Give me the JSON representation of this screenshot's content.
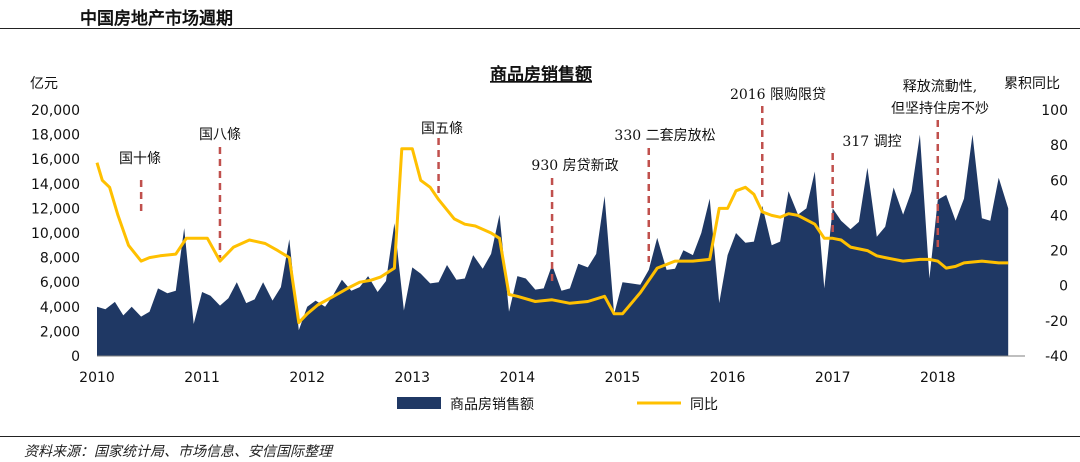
{
  "header": {
    "title": "中国房地产市场週期"
  },
  "source_note": "资料来源：国家统计局、市场信息、安信国际整理",
  "chart_data": {
    "type": "area",
    "title": "商品房销售额",
    "left_axis_label": "亿元",
    "right_axis_label": "累积同比",
    "left_ylim": [
      0,
      20000
    ],
    "left_ticks": [
      "0",
      "2,000",
      "4,000",
      "6,000",
      "8,000",
      "10,000",
      "12,000",
      "14,000",
      "16,000",
      "18,000",
      "20,000"
    ],
    "right_ylim": [
      -40,
      100
    ],
    "right_ticks": [
      "-40",
      "-20",
      "0",
      "20",
      "40",
      "60",
      "80",
      "100"
    ],
    "x_ticks": [
      "2010",
      "2011",
      "2012",
      "2013",
      "2014",
      "2015",
      "2016",
      "2017",
      "2018"
    ],
    "x_range": [
      2010,
      2018.83
    ],
    "legend_position": "bottom-center",
    "series": [
      {
        "name": "商品房销售额",
        "type": "area",
        "axis": "left",
        "color": "#1f3864",
        "points": [
          [
            2010.0,
            4000
          ],
          [
            2010.08,
            3800
          ],
          [
            2010.17,
            4400
          ],
          [
            2010.25,
            3300
          ],
          [
            2010.33,
            4000
          ],
          [
            2010.42,
            3200
          ],
          [
            2010.5,
            3600
          ],
          [
            2010.58,
            5500
          ],
          [
            2010.67,
            5100
          ],
          [
            2010.75,
            5300
          ],
          [
            2010.83,
            10400
          ],
          [
            2010.92,
            2600
          ],
          [
            2011.0,
            5200
          ],
          [
            2011.08,
            4900
          ],
          [
            2011.17,
            4100
          ],
          [
            2011.25,
            4700
          ],
          [
            2011.33,
            6000
          ],
          [
            2011.42,
            4300
          ],
          [
            2011.5,
            4600
          ],
          [
            2011.58,
            6000
          ],
          [
            2011.67,
            4500
          ],
          [
            2011.75,
            5600
          ],
          [
            2011.83,
            9500
          ],
          [
            2011.92,
            2100
          ],
          [
            2012.0,
            4000
          ],
          [
            2012.08,
            4500
          ],
          [
            2012.17,
            4000
          ],
          [
            2012.25,
            5000
          ],
          [
            2012.33,
            6200
          ],
          [
            2012.42,
            5300
          ],
          [
            2012.5,
            5600
          ],
          [
            2012.58,
            6500
          ],
          [
            2012.67,
            5200
          ],
          [
            2012.75,
            6100
          ],
          [
            2012.83,
            10800
          ],
          [
            2012.92,
            3700
          ],
          [
            2013.0,
            7200
          ],
          [
            2013.08,
            6700
          ],
          [
            2013.17,
            5900
          ],
          [
            2013.25,
            6000
          ],
          [
            2013.33,
            7400
          ],
          [
            2013.42,
            6200
          ],
          [
            2013.5,
            6300
          ],
          [
            2013.58,
            8200
          ],
          [
            2013.67,
            7100
          ],
          [
            2013.75,
            8300
          ],
          [
            2013.83,
            11500
          ],
          [
            2013.92,
            3600
          ],
          [
            2014.0,
            6500
          ],
          [
            2014.08,
            6300
          ],
          [
            2014.17,
            5400
          ],
          [
            2014.25,
            5500
          ],
          [
            2014.33,
            7400
          ],
          [
            2014.42,
            5300
          ],
          [
            2014.5,
            5500
          ],
          [
            2014.58,
            7500
          ],
          [
            2014.67,
            7200
          ],
          [
            2014.75,
            8300
          ],
          [
            2014.83,
            13000
          ],
          [
            2014.92,
            3400
          ],
          [
            2015.0,
            6000
          ],
          [
            2015.08,
            5900
          ],
          [
            2015.17,
            5800
          ],
          [
            2015.25,
            7000
          ],
          [
            2015.33,
            9600
          ],
          [
            2015.42,
            7000
          ],
          [
            2015.5,
            7100
          ],
          [
            2015.58,
            8600
          ],
          [
            2015.67,
            8200
          ],
          [
            2015.75,
            10000
          ],
          [
            2015.83,
            12800
          ],
          [
            2015.92,
            4300
          ],
          [
            2016.0,
            8200
          ],
          [
            2016.08,
            10000
          ],
          [
            2016.17,
            9200
          ],
          [
            2016.25,
            9300
          ],
          [
            2016.33,
            12200
          ],
          [
            2016.42,
            9000
          ],
          [
            2016.5,
            9300
          ],
          [
            2016.58,
            13400
          ],
          [
            2016.67,
            11500
          ],
          [
            2016.75,
            12000
          ],
          [
            2016.83,
            15000
          ],
          [
            2016.92,
            5500
          ],
          [
            2017.0,
            12000
          ],
          [
            2017.08,
            11000
          ],
          [
            2017.17,
            10300
          ],
          [
            2017.25,
            10900
          ],
          [
            2017.33,
            15300
          ],
          [
            2017.42,
            9700
          ],
          [
            2017.5,
            10500
          ],
          [
            2017.58,
            13700
          ],
          [
            2017.67,
            11500
          ],
          [
            2017.75,
            13400
          ],
          [
            2017.83,
            18000
          ],
          [
            2017.92,
            6300
          ],
          [
            2018.0,
            12700
          ],
          [
            2018.08,
            13100
          ],
          [
            2018.17,
            11000
          ],
          [
            2018.25,
            12800
          ],
          [
            2018.33,
            18000
          ],
          [
            2018.42,
            11200
          ],
          [
            2018.5,
            11000
          ],
          [
            2018.58,
            14500
          ],
          [
            2018.67,
            12000
          ]
        ]
      },
      {
        "name": "同比",
        "type": "line",
        "axis": "right",
        "color": "#ffc000",
        "points": [
          [
            2010.0,
            70
          ],
          [
            2010.05,
            60
          ],
          [
            2010.12,
            56
          ],
          [
            2010.2,
            40
          ],
          [
            2010.3,
            23
          ],
          [
            2010.42,
            14
          ],
          [
            2010.5,
            16
          ],
          [
            2010.6,
            17
          ],
          [
            2010.75,
            18
          ],
          [
            2010.85,
            27
          ],
          [
            2011.05,
            27
          ],
          [
            2011.17,
            14
          ],
          [
            2011.3,
            22
          ],
          [
            2011.45,
            26
          ],
          [
            2011.6,
            24
          ],
          [
            2011.72,
            20
          ],
          [
            2011.83,
            16
          ],
          [
            2011.92,
            -21
          ],
          [
            2012.0,
            -16
          ],
          [
            2012.1,
            -11
          ],
          [
            2012.25,
            -6
          ],
          [
            2012.4,
            -1
          ],
          [
            2012.5,
            2
          ],
          [
            2012.6,
            3
          ],
          [
            2012.7,
            5
          ],
          [
            2012.83,
            10
          ],
          [
            2012.9,
            78
          ],
          [
            2013.0,
            78
          ],
          [
            2013.08,
            60
          ],
          [
            2013.17,
            56
          ],
          [
            2013.25,
            49
          ],
          [
            2013.4,
            38
          ],
          [
            2013.5,
            35
          ],
          [
            2013.6,
            34
          ],
          [
            2013.75,
            30
          ],
          [
            2013.83,
            27
          ],
          [
            2013.92,
            -5
          ],
          [
            2014.0,
            -6
          ],
          [
            2014.17,
            -9
          ],
          [
            2014.33,
            -8
          ],
          [
            2014.5,
            -10
          ],
          [
            2014.67,
            -9
          ],
          [
            2014.83,
            -6
          ],
          [
            2014.92,
            -16
          ],
          [
            2015.0,
            -16
          ],
          [
            2015.17,
            -4
          ],
          [
            2015.33,
            10
          ],
          [
            2015.5,
            14
          ],
          [
            2015.67,
            14
          ],
          [
            2015.83,
            15
          ],
          [
            2015.92,
            44
          ],
          [
            2016.0,
            44
          ],
          [
            2016.08,
            54
          ],
          [
            2016.17,
            56
          ],
          [
            2016.25,
            52
          ],
          [
            2016.33,
            42
          ],
          [
            2016.42,
            40
          ],
          [
            2016.5,
            39
          ],
          [
            2016.58,
            41
          ],
          [
            2016.67,
            40
          ],
          [
            2016.83,
            35
          ],
          [
            2016.92,
            27
          ],
          [
            2017.0,
            27
          ],
          [
            2017.08,
            26
          ],
          [
            2017.17,
            22
          ],
          [
            2017.33,
            20
          ],
          [
            2017.42,
            17
          ],
          [
            2017.5,
            16
          ],
          [
            2017.67,
            14
          ],
          [
            2017.83,
            15
          ],
          [
            2017.92,
            15
          ],
          [
            2018.0,
            14
          ],
          [
            2018.08,
            10
          ],
          [
            2018.17,
            11
          ],
          [
            2018.25,
            13
          ],
          [
            2018.42,
            14
          ],
          [
            2018.58,
            13
          ],
          [
            2018.67,
            13
          ]
        ]
      }
    ],
    "annotations": [
      {
        "x": 2010.42,
        "label": "国十條"
      },
      {
        "x": 2011.17,
        "label": "国八條"
      },
      {
        "x": 2013.25,
        "label": "国五條"
      },
      {
        "x": 2014.33,
        "label": "930 房贷新政"
      },
      {
        "x": 2015.25,
        "label": "330 二套房放松"
      },
      {
        "x": 2016.33,
        "label": "2016 限购限贷"
      },
      {
        "x": 2017.0,
        "label": "317 调控"
      },
      {
        "x": 2018.0,
        "label": "释放流動性,",
        "label2": "但坚持住房不炒"
      }
    ]
  }
}
